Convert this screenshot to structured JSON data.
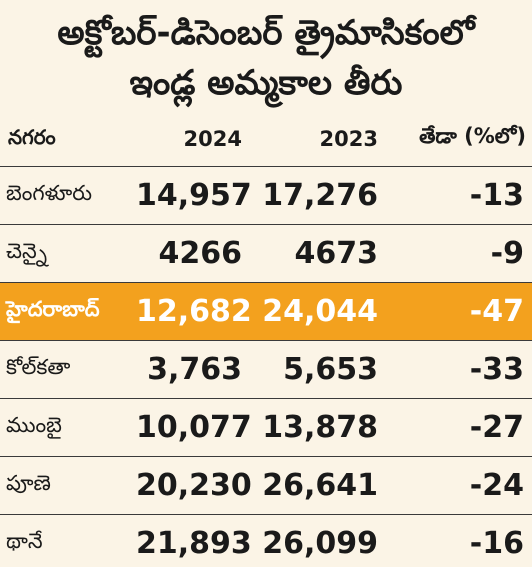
{
  "chart_data": {
    "type": "table",
    "title_lines": [
      "అక్టోబర్-డిసెంబర్ త్రైమాసికంలో",
      "ఇండ్ల అమ్మకాల తీరు"
    ],
    "columns": [
      "నగరం",
      "2024",
      "2023",
      "తేడా (%లో)"
    ],
    "rows": [
      {
        "city": "బెంగళూరు",
        "y2024": "14,957",
        "y2023": "17,276",
        "change": "-13",
        "highlight": false
      },
      {
        "city": "చెన్నై",
        "y2024": "4266",
        "y2023": "4673",
        "change": "-9",
        "highlight": false
      },
      {
        "city": "హైదరాబాద్",
        "y2024": "12,682",
        "y2023": "24,044",
        "change": "-47",
        "highlight": true
      },
      {
        "city": "కోల్‌కతా",
        "y2024": "3,763",
        "y2023": "5,653",
        "change": "-33",
        "highlight": false
      },
      {
        "city": "ముంబై",
        "y2024": "10,077",
        "y2023": "13,878",
        "change": "-27",
        "highlight": false
      },
      {
        "city": "పూణె",
        "y2024": "20,230",
        "y2023": "26,641",
        "change": "-24",
        "highlight": false
      },
      {
        "city": "థానే",
        "y2024": "21,893",
        "y2023": "26,099",
        "change": "-16",
        "highlight": false
      }
    ]
  },
  "colors": {
    "background": "#fbf4e6",
    "highlight": "#f3a11e",
    "highlight_text": "#ffffff",
    "text": "#1a1a1a"
  }
}
